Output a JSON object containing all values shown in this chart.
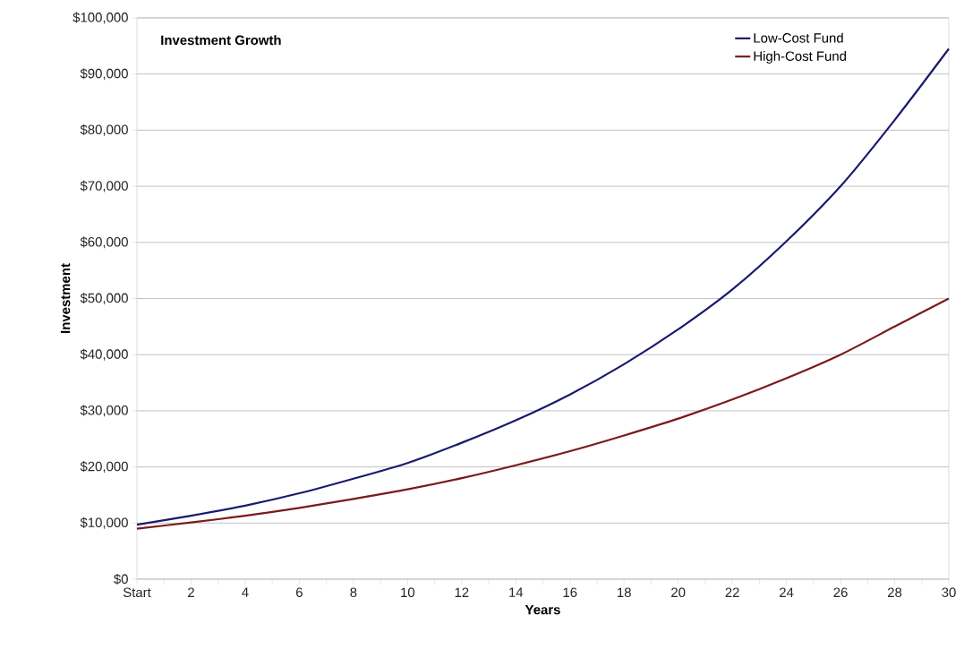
{
  "chart_data": {
    "type": "line",
    "title": "Investment Growth",
    "xlabel": "Years",
    "ylabel": "Investment",
    "x": [
      0,
      2,
      4,
      6,
      8,
      10,
      12,
      14,
      16,
      18,
      20,
      22,
      24,
      26,
      28,
      30
    ],
    "series": [
      {
        "name": "Low-Cost Fund",
        "color": "#1a1a6e",
        "values": [
          9700,
          11300,
          13100,
          15300,
          17900,
          20700,
          24300,
          28300,
          32900,
          38300,
          44500,
          51600,
          60200,
          70000,
          81800,
          94500
        ]
      },
      {
        "name": "High-Cost Fund",
        "color": "#7a1a1a",
        "values": [
          9000,
          10100,
          11300,
          12700,
          14300,
          16000,
          18000,
          20300,
          22800,
          25600,
          28600,
          32000,
          35800,
          40000,
          45000,
          50000
        ]
      }
    ],
    "xlim": [
      0,
      30
    ],
    "xticks": [
      {
        "value": 0,
        "label": "Start"
      },
      {
        "value": 1,
        "label": null
      },
      2,
      {
        "value": 3,
        "label": null
      },
      4,
      {
        "value": 5,
        "label": null
      },
      6,
      {
        "value": 7,
        "label": null
      },
      8,
      {
        "value": 9,
        "label": null
      },
      10,
      {
        "value": 11,
        "label": null
      },
      12,
      {
        "value": 13,
        "label": null
      },
      14,
      {
        "value": 15,
        "label": null
      },
      16,
      {
        "value": 17,
        "label": null
      },
      18,
      {
        "value": 19,
        "label": null
      },
      20,
      {
        "value": 21,
        "label": null
      },
      22,
      {
        "value": 23,
        "label": null
      },
      24,
      {
        "value": 25,
        "label": null
      },
      26,
      {
        "value": 27,
        "label": null
      },
      28,
      {
        "value": 29,
        "label": null
      },
      30
    ],
    "ylim": [
      0,
      100000
    ],
    "yticks": [
      {
        "value": 0,
        "label": "$0"
      },
      {
        "value": 10000,
        "label": "$10,000"
      },
      {
        "value": 20000,
        "label": "$20,000"
      },
      {
        "value": 30000,
        "label": "$30,000"
      },
      {
        "value": 40000,
        "label": "$40,000"
      },
      {
        "value": 50000,
        "label": "$50,000"
      },
      {
        "value": 60000,
        "label": "$60,000"
      },
      {
        "value": 70000,
        "label": "$70,000"
      },
      {
        "value": 80000,
        "label": "$80,000"
      },
      {
        "value": 90000,
        "label": "$90,000"
      },
      {
        "value": 100000,
        "label": "$100,000"
      }
    ],
    "grid": "y",
    "legend": "top right",
    "marker": "none",
    "line_style": "solid"
  }
}
